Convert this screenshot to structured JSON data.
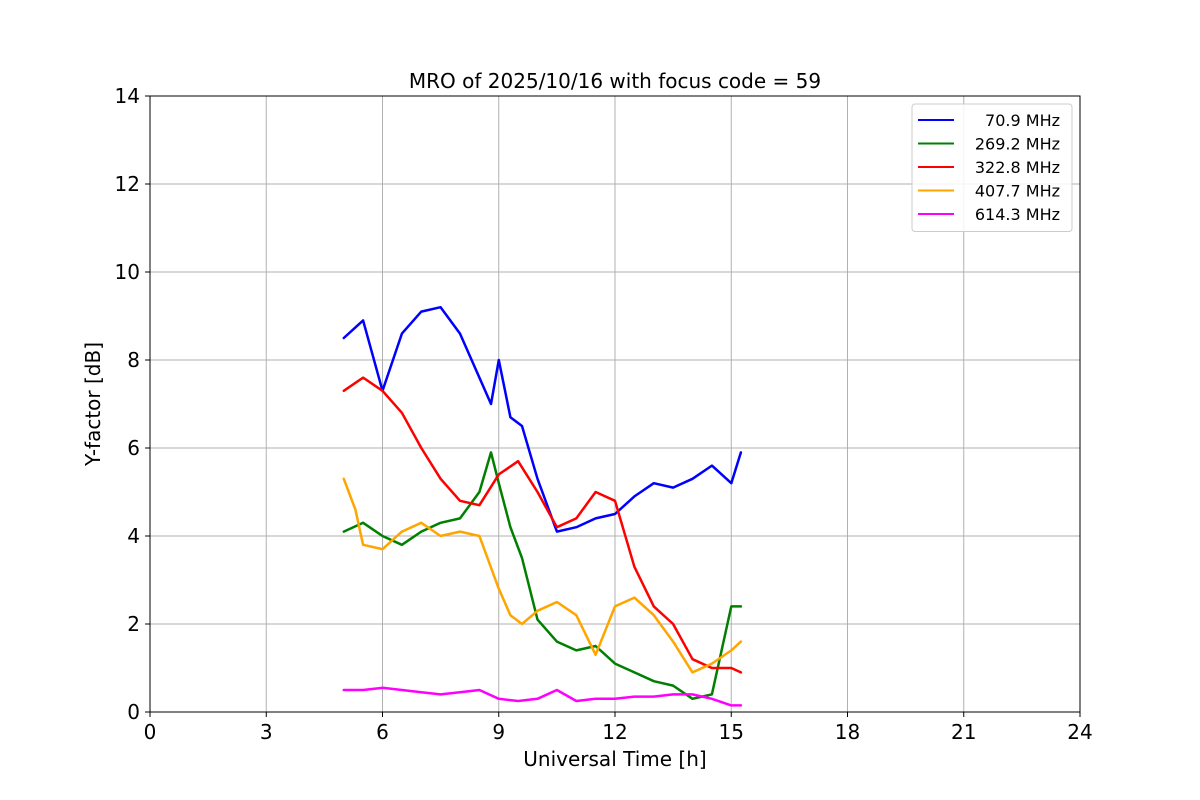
{
  "chart_data": {
    "type": "line",
    "title": "MRO of 2025/10/16 with focus code = 59",
    "xlabel": "Universal Time [h]",
    "ylabel": "Y-factor [dB]",
    "xlim": [
      0,
      24
    ],
    "ylim": [
      0,
      14
    ],
    "xticks": [
      0,
      3,
      6,
      9,
      12,
      15,
      18,
      21,
      24
    ],
    "yticks": [
      0,
      2,
      4,
      6,
      8,
      10,
      12,
      14
    ],
    "grid": true,
    "legend_position": "top-right",
    "series": [
      {
        "name": "70.9 MHz",
        "color": "#0000ff",
        "x": [
          5.0,
          5.5,
          6.0,
          6.5,
          7.0,
          7.5,
          8.0,
          8.5,
          8.8,
          9.0,
          9.3,
          9.6,
          10.0,
          10.5,
          11.0,
          11.5,
          12.0,
          12.5,
          13.0,
          13.5,
          14.0,
          14.5,
          15.0,
          15.25
        ],
        "y": [
          8.5,
          8.9,
          7.3,
          8.6,
          9.1,
          9.2,
          8.6,
          7.6,
          7.0,
          8.0,
          6.7,
          6.5,
          5.3,
          4.1,
          4.2,
          4.4,
          4.5,
          4.9,
          5.2,
          5.1,
          5.3,
          5.6,
          5.2,
          5.9
        ]
      },
      {
        "name": "269.2 MHz",
        "color": "#008000",
        "x": [
          5.0,
          5.5,
          6.0,
          6.5,
          7.0,
          7.5,
          8.0,
          8.5,
          8.8,
          9.0,
          9.3,
          9.6,
          10.0,
          10.5,
          11.0,
          11.5,
          12.0,
          12.5,
          13.0,
          13.5,
          14.0,
          14.5,
          15.0,
          15.25
        ],
        "y": [
          4.1,
          4.3,
          4.0,
          3.8,
          4.1,
          4.3,
          4.4,
          5.0,
          5.9,
          5.2,
          4.2,
          3.5,
          2.1,
          1.6,
          1.4,
          1.5,
          1.1,
          0.9,
          0.7,
          0.6,
          0.3,
          0.4,
          2.4,
          2.4
        ]
      },
      {
        "name": "322.8 MHz",
        "color": "#ff0000",
        "x": [
          5.0,
          5.5,
          6.0,
          6.5,
          7.0,
          7.5,
          8.0,
          8.5,
          9.0,
          9.5,
          10.0,
          10.5,
          11.0,
          11.5,
          12.0,
          12.5,
          13.0,
          13.5,
          14.0,
          14.5,
          15.0,
          15.25
        ],
        "y": [
          7.3,
          7.6,
          7.3,
          6.8,
          6.0,
          5.3,
          4.8,
          4.7,
          5.4,
          5.7,
          5.0,
          4.2,
          4.4,
          5.0,
          4.8,
          3.3,
          2.4,
          2.0,
          1.2,
          1.0,
          1.0,
          0.9
        ]
      },
      {
        "name": "407.7 MHz",
        "color": "#ffa500",
        "x": [
          5.0,
          5.3,
          5.5,
          6.0,
          6.5,
          7.0,
          7.5,
          8.0,
          8.5,
          9.0,
          9.3,
          9.6,
          10.0,
          10.5,
          11.0,
          11.5,
          12.0,
          12.5,
          13.0,
          13.5,
          14.0,
          14.5,
          15.0,
          15.25
        ],
        "y": [
          5.3,
          4.6,
          3.8,
          3.7,
          4.1,
          4.3,
          4.0,
          4.1,
          4.0,
          2.8,
          2.2,
          2.0,
          2.3,
          2.5,
          2.2,
          1.3,
          2.4,
          2.6,
          2.2,
          1.6,
          0.9,
          1.1,
          1.4,
          1.6
        ]
      },
      {
        "name": "614.3 MHz",
        "color": "#ff00ff",
        "x": [
          5.0,
          5.5,
          6.0,
          6.5,
          7.0,
          7.5,
          8.0,
          8.5,
          9.0,
          9.5,
          10.0,
          10.5,
          11.0,
          11.5,
          12.0,
          12.5,
          13.0,
          13.5,
          14.0,
          14.5,
          15.0,
          15.25
        ],
        "y": [
          0.5,
          0.5,
          0.55,
          0.5,
          0.45,
          0.4,
          0.45,
          0.5,
          0.3,
          0.25,
          0.3,
          0.5,
          0.25,
          0.3,
          0.3,
          0.35,
          0.35,
          0.4,
          0.4,
          0.3,
          0.15,
          0.15
        ]
      }
    ]
  }
}
